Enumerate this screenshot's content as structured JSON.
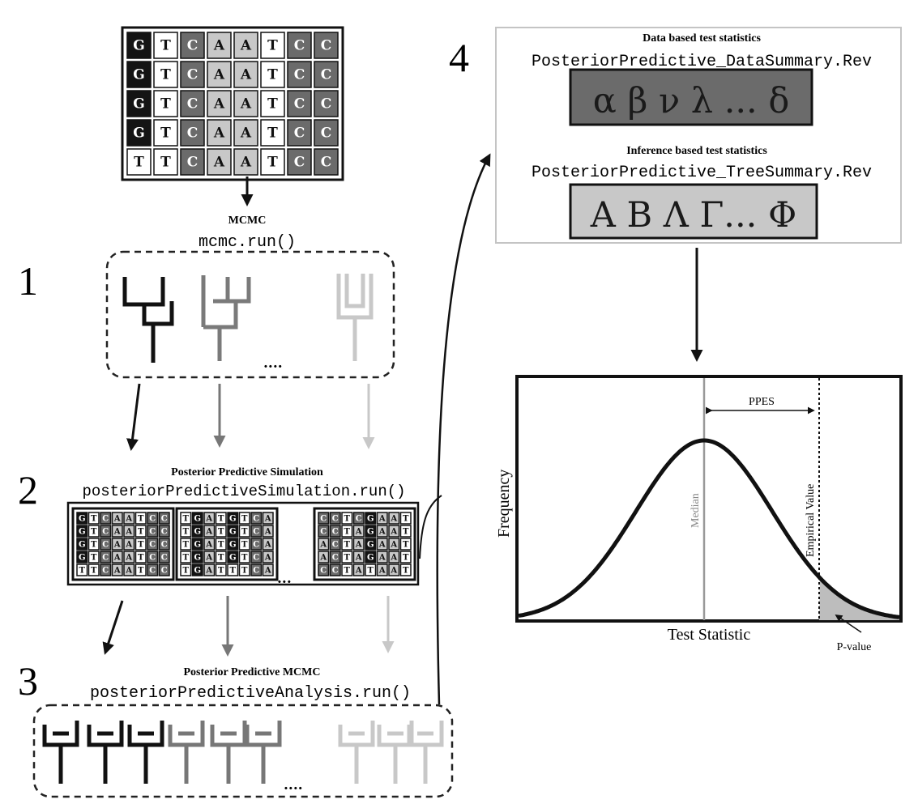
{
  "steps": {
    "one": "1",
    "two": "2",
    "three": "3",
    "four": "4"
  },
  "alignment": {
    "rows": [
      "GTCAATCC",
      "GTCAATCC",
      "GTCAATCC",
      "GTCAATCC",
      "TTCAATCC"
    ]
  },
  "mcmc": {
    "title": "MCMC",
    "command": "mcmc.run()",
    "ellipsis": "...."
  },
  "simulation": {
    "title": "Posterior Predictive Simulation",
    "command": "posteriorPredictiveSimulation.run()",
    "ellipsis": "...",
    "alignments": [
      {
        "rows": [
          "GTCAATCC",
          "GTCAATCC",
          "GTCAATCC",
          "GTCAATCC",
          "TTCAATCC"
        ]
      },
      {
        "rows": [
          "TGATGTCA",
          "TGATGTCA",
          "TGATGTCA",
          "TGATGTCA",
          "TGATTTCA"
        ]
      },
      {
        "rows": [
          "CCTCGAAT",
          "CCTAGAAT",
          "ACTAGAAT",
          "ACTAGAAT",
          "CCTATAAT"
        ]
      }
    ]
  },
  "ppmcmc": {
    "title": "Posterior Predictive MCMC",
    "command": "posteriorPredictiveAnalysis.run()",
    "ellipsis": "...."
  },
  "stats": {
    "data_title": "Data based test statistics",
    "data_command": "PosteriorPredictive_DataSummary.Rev",
    "data_symbols": "α β ν λ ... δ",
    "inference_title": "Inference based test statistics",
    "inference_command": "PosteriorPredictive_TreeSummary.Rev",
    "inference_symbols": "Α Β Λ Γ... Φ"
  },
  "plot": {
    "ylabel": "Frequency",
    "xlabel": "Test Statistic",
    "ppes_label": "PPES",
    "median_label": "Median",
    "empirical_label": "Empirical Value",
    "pvalue_label": "P-value"
  },
  "colors": {
    "black": "#000000",
    "dark": "#3c3c3c",
    "mid": "#6e6e6e",
    "light": "#c8c8c8",
    "pale": "#e6e6e6",
    "ppes_fill": "#bdbdbd"
  }
}
